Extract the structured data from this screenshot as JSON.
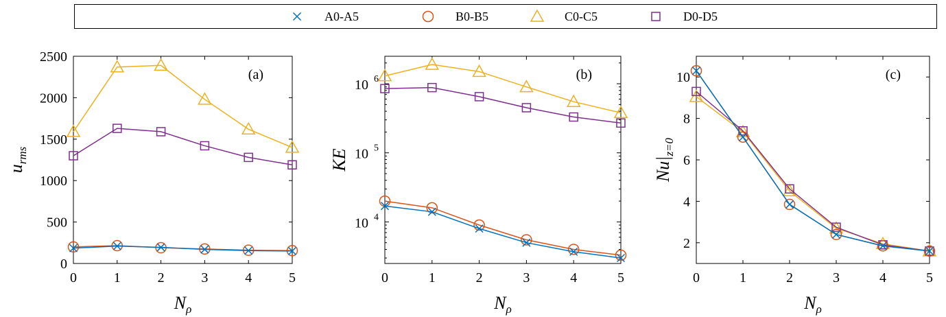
{
  "legend": {
    "placement": "top",
    "entries": [
      {
        "label": "A0-A5",
        "marker": "x-icon",
        "color": "#0072BD"
      },
      {
        "label": "B0-B5",
        "marker": "circle-icon",
        "color": "#D95319"
      },
      {
        "label": "C0-C5",
        "marker": "triangle-icon",
        "color": "#EDB120"
      },
      {
        "label": "D0-D5",
        "marker": "square-icon",
        "color": "#7E2F8E"
      }
    ]
  },
  "chart_data": [
    {
      "type": "line",
      "panel_label": "(a)",
      "xlabel_main": "N",
      "xlabel_sub": "ρ",
      "ylabel_main": "u",
      "ylabel_sub": "rms",
      "xlim": [
        0,
        5
      ],
      "ylim": [
        0,
        2500
      ],
      "yscale": "linear",
      "x_ticks": [
        "0",
        "1",
        "2",
        "3",
        "4",
        "5"
      ],
      "y_ticks": [
        "0",
        "500",
        "1000",
        "1500",
        "2000",
        "2500"
      ],
      "x": [
        0,
        1,
        2,
        3,
        4,
        5
      ],
      "series": [
        {
          "name": "A0-A5",
          "values": [
            185,
            210,
            195,
            170,
            155,
            150
          ]
        },
        {
          "name": "B0-B5",
          "values": [
            200,
            215,
            190,
            175,
            160,
            155
          ]
        },
        {
          "name": "C0-C5",
          "values": [
            1590,
            2370,
            2390,
            1980,
            1620,
            1400
          ]
        },
        {
          "name": "D0-D5",
          "values": [
            1300,
            1630,
            1590,
            1420,
            1280,
            1190
          ]
        }
      ]
    },
    {
      "type": "line",
      "panel_label": "(b)",
      "xlabel_main": "N",
      "xlabel_sub": "ρ",
      "ylabel_main": "KE",
      "ylabel_sub": "",
      "xlim": [
        0,
        5
      ],
      "ylim": [
        2500,
        2500000
      ],
      "yscale": "log",
      "x_ticks": [
        "0",
        "1",
        "2",
        "3",
        "4",
        "5"
      ],
      "y_ticks": [
        {
          "base": "10",
          "exp": "4",
          "value": 10000
        },
        {
          "base": "10",
          "exp": "5",
          "value": 100000
        },
        {
          "base": "10",
          "exp": "6",
          "value": 1000000
        }
      ],
      "x": [
        0,
        1,
        2,
        3,
        4,
        5
      ],
      "series": [
        {
          "name": "A0-A5",
          "values": [
            17000,
            14000,
            8000,
            5000,
            3700,
            3000
          ]
        },
        {
          "name": "B0-B5",
          "values": [
            20000,
            16000,
            9000,
            5500,
            4000,
            3300
          ]
        },
        {
          "name": "C0-C5",
          "values": [
            1300000,
            1900000,
            1500000,
            900000,
            550000,
            380000
          ]
        },
        {
          "name": "D0-D5",
          "values": [
            850000,
            880000,
            650000,
            450000,
            330000,
            270000
          ]
        }
      ]
    },
    {
      "type": "line",
      "panel_label": "(c)",
      "xlabel_main": "N",
      "xlabel_sub": "ρ",
      "ylabel_main": "Nu|",
      "ylabel_sub": "z=0",
      "xlim": [
        0,
        5
      ],
      "ylim": [
        1,
        11
      ],
      "yscale": "linear",
      "x_ticks": [
        "0",
        "1",
        "2",
        "3",
        "4",
        "5"
      ],
      "y_ticks": [
        "2",
        "4",
        "6",
        "8",
        "10"
      ],
      "x": [
        0,
        1,
        2,
        3,
        4,
        5
      ],
      "series": [
        {
          "name": "A0-A5",
          "values": [
            10.3,
            7.1,
            3.85,
            2.4,
            1.85,
            1.6
          ]
        },
        {
          "name": "B0-B5",
          "values": [
            10.3,
            7.1,
            3.85,
            2.4,
            1.85,
            1.6
          ]
        },
        {
          "name": "C0-C5",
          "values": [
            9.05,
            7.35,
            4.5,
            2.7,
            1.95,
            1.6
          ]
        },
        {
          "name": "D0-D5",
          "values": [
            9.3,
            7.4,
            4.6,
            2.75,
            1.9,
            1.6
          ]
        }
      ]
    }
  ]
}
